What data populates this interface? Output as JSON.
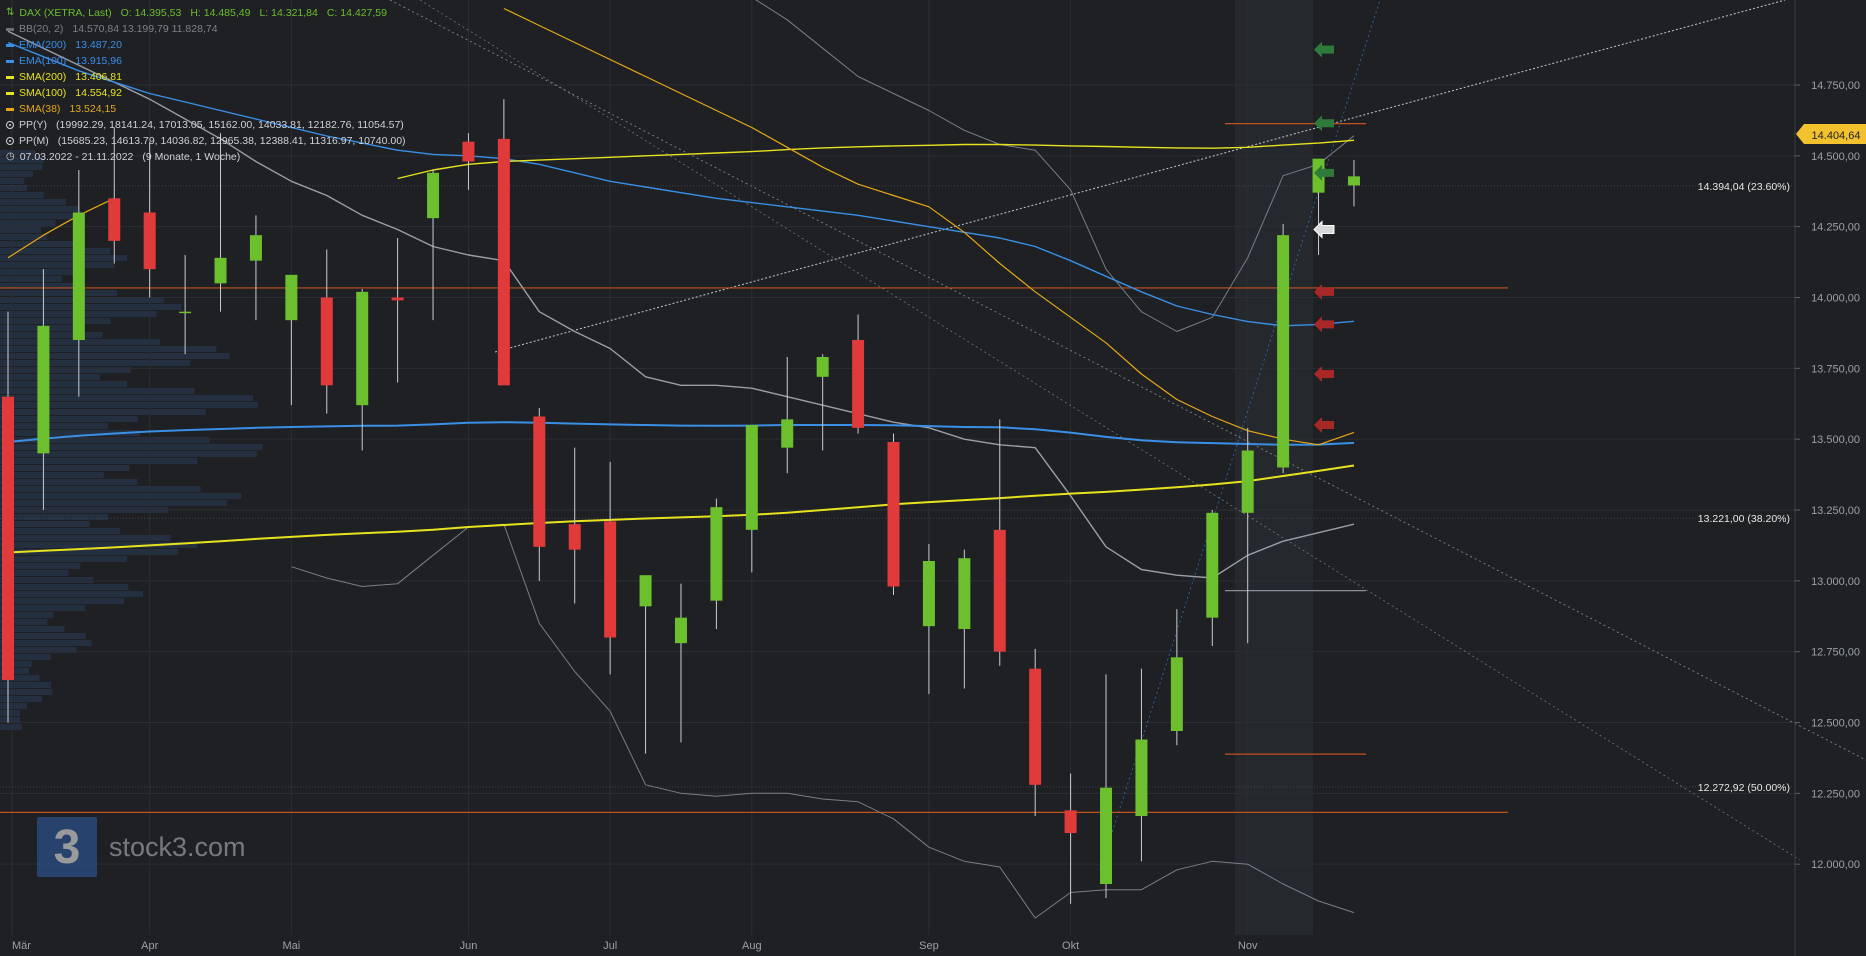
{
  "chart_data": {
    "type": "candlestick",
    "title": "DAX (XETRA, Last)",
    "ohlc_header": {
      "o": "O: 14.395,53",
      "h": "H: 14.485,49",
      "l": "L: 14.321,84",
      "c": "C: 14.427,59"
    },
    "ylim": [
      11750,
      15050
    ],
    "y_ticks": [
      "12.000,00",
      "12.250,00",
      "12.500,00",
      "12.750,00",
      "13.000,00",
      "13.250,00",
      "13.500,00",
      "13.750,00",
      "14.000,00",
      "14.250,00",
      "14.500,00",
      "14.750,00"
    ],
    "x_ticks": [
      "Mär",
      "Apr",
      "Mai",
      "Jun",
      "Jul",
      "Aug",
      "Sep",
      "Okt",
      "Nov"
    ],
    "x_tick_weeks": [
      0,
      4,
      8,
      13,
      17,
      21,
      26,
      30,
      35
    ],
    "period": "07.03.2022 - 21.11.2022",
    "period_note": "(9 Monate, 1 Woche)",
    "last_price": "14.404,64",
    "last_price_value": 14404.64,
    "candles": [
      {
        "o": 13650,
        "h": 13950,
        "l": 12500,
        "c": 12650
      },
      {
        "o": 13450,
        "h": 14100,
        "l": 13250,
        "c": 13900
      },
      {
        "o": 13850,
        "h": 14450,
        "l": 13650,
        "c": 14300
      },
      {
        "o": 14350,
        "h": 14600,
        "l": 14120,
        "c": 14200
      },
      {
        "o": 14300,
        "h": 14550,
        "l": 14000,
        "c": 14100
      },
      {
        "o": 13950,
        "h": 14150,
        "l": 13800,
        "c": 13950
      },
      {
        "o": 14050,
        "h": 14580,
        "l": 13950,
        "c": 14140
      },
      {
        "o": 14130,
        "h": 14290,
        "l": 13920,
        "c": 14220
      },
      {
        "o": 13920,
        "h": 14080,
        "l": 13620,
        "c": 14080
      },
      {
        "o": 14000,
        "h": 14170,
        "l": 13590,
        "c": 13690
      },
      {
        "o": 13620,
        "h": 14030,
        "l": 13460,
        "c": 14020
      },
      {
        "o": 14000,
        "h": 14210,
        "l": 13700,
        "c": 13990
      },
      {
        "o": 14280,
        "h": 14450,
        "l": 13920,
        "c": 14440
      },
      {
        "o": 14550,
        "h": 14580,
        "l": 14380,
        "c": 14480
      },
      {
        "o": 14560,
        "h": 14700,
        "l": 13720,
        "c": 13690
      },
      {
        "o": 13580,
        "h": 13610,
        "l": 13000,
        "c": 13120
      },
      {
        "o": 13200,
        "h": 13470,
        "l": 12920,
        "c": 13110
      },
      {
        "o": 13210,
        "h": 13420,
        "l": 12670,
        "c": 12800
      },
      {
        "o": 12910,
        "h": 13010,
        "l": 12390,
        "c": 13020
      },
      {
        "o": 12780,
        "h": 12990,
        "l": 12430,
        "c": 12870
      },
      {
        "o": 12930,
        "h": 13290,
        "l": 12830,
        "c": 13260
      },
      {
        "o": 13180,
        "h": 13520,
        "l": 13030,
        "c": 13550
      },
      {
        "o": 13470,
        "h": 13790,
        "l": 13380,
        "c": 13570
      },
      {
        "o": 13720,
        "h": 13800,
        "l": 13460,
        "c": 13790
      },
      {
        "o": 13850,
        "h": 13940,
        "l": 13520,
        "c": 13540
      },
      {
        "o": 13490,
        "h": 13520,
        "l": 12950,
        "c": 12980
      },
      {
        "o": 12840,
        "h": 13130,
        "l": 12600,
        "c": 13070
      },
      {
        "o": 12830,
        "h": 13110,
        "l": 12620,
        "c": 13080
      },
      {
        "o": 13180,
        "h": 13570,
        "l": 12700,
        "c": 12750
      },
      {
        "o": 12690,
        "h": 12760,
        "l": 12170,
        "c": 12280
      },
      {
        "o": 12190,
        "h": 12320,
        "l": 11860,
        "c": 12110
      },
      {
        "o": 11930,
        "h": 12670,
        "l": 11880,
        "c": 12270
      },
      {
        "o": 12170,
        "h": 12690,
        "l": 12010,
        "c": 12440
      },
      {
        "o": 12470,
        "h": 12900,
        "l": 12420,
        "c": 12730
      },
      {
        "o": 12870,
        "h": 13250,
        "l": 12770,
        "c": 13240
      },
      {
        "o": 13240,
        "h": 13540,
        "l": 12780,
        "c": 13460
      },
      {
        "o": 13400,
        "h": 14260,
        "l": 13380,
        "c": 14220
      },
      {
        "o": 14370,
        "h": 14480,
        "l": 14150,
        "c": 14490
      },
      {
        "o": 14395.53,
        "h": 14485.49,
        "l": 14321.84,
        "c": 14427.59
      }
    ],
    "series": [
      {
        "name": "EMA(200)",
        "label": "EMA(200)",
        "value_text": "13.487,20",
        "color": "#3a8fe6",
        "values": [
          13490,
          13502,
          13512,
          13520,
          13527,
          13532,
          13536,
          13540,
          13543,
          13545,
          13547,
          13548,
          13552,
          13558,
          13560,
          13558,
          13555,
          13552,
          13550,
          13548,
          13547,
          13548,
          13550,
          13550,
          13550,
          13549,
          13546,
          13543,
          13542,
          13535,
          13523,
          13508,
          13496,
          13489,
          13486,
          13483,
          13480,
          13481,
          13487
        ]
      },
      {
        "name": "EMA(100)",
        "label": "EMA(100)",
        "value_text": "13.915,96",
        "color": "#3a8fe6",
        "values": [
          14900,
          14850,
          14800,
          14760,
          14720,
          14690,
          14660,
          14630,
          14600,
          14570,
          14545,
          14520,
          14505,
          14500,
          14490,
          14470,
          14440,
          14410,
          14390,
          14370,
          14350,
          14335,
          14320,
          14305,
          14290,
          14270,
          14250,
          14230,
          14210,
          14180,
          14130,
          14075,
          14020,
          13970,
          13940,
          13915,
          13900,
          13905,
          13916
        ]
      },
      {
        "name": "SMA(200)",
        "label": "SMA(200)",
        "value_text": "13.406,81",
        "color": "#e8e31e",
        "values": [
          13100,
          13106,
          13112,
          13118,
          13125,
          13132,
          13140,
          13148,
          13155,
          13162,
          13168,
          13173,
          13180,
          13190,
          13197,
          13204,
          13210,
          13215,
          13220,
          13224,
          13228,
          13233,
          13240,
          13250,
          13260,
          13270,
          13278,
          13285,
          13292,
          13300,
          13308,
          13314,
          13322,
          13330,
          13340,
          13352,
          13370,
          13388,
          13407
        ]
      },
      {
        "name": "SMA(100)",
        "label": "SMA(100)",
        "value_text": "14.554,92",
        "color": "#e8e31e",
        "values": [
          null,
          null,
          null,
          null,
          null,
          null,
          null,
          null,
          null,
          null,
          null,
          14420,
          14450,
          14470,
          14480,
          14485,
          14490,
          14495,
          14500,
          14505,
          14510,
          14515,
          14522,
          14528,
          14532,
          14535,
          14537,
          14540,
          14540,
          14538,
          14535,
          14533,
          14530,
          14528,
          14527,
          14530,
          14538,
          14545,
          14555
        ]
      },
      {
        "name": "SMA(38)",
        "label": "SMA(38)",
        "value_text": "13.524,15",
        "color": "#e6a817",
        "values": [
          14140,
          14220,
          14290,
          14350,
          null,
          null,
          null,
          null,
          null,
          null,
          null,
          null,
          null,
          null,
          15020,
          14960,
          14900,
          14840,
          14780,
          14720,
          14660,
          14600,
          14530,
          14460,
          14400,
          14360,
          14320,
          14230,
          14120,
          14020,
          13930,
          13840,
          13730,
          13640,
          13580,
          13530,
          13500,
          13480,
          13524
        ]
      },
      {
        "name": "BB(20, 2)",
        "label": "BB(20, 2)",
        "value_text": "14.570,84  13.199,79  11.828,74",
        "color": "#6c7078",
        "upper": [
          null,
          null,
          null,
          null,
          null,
          null,
          null,
          null,
          null,
          null,
          null,
          null,
          null,
          null,
          null,
          null,
          null,
          null,
          null,
          15100,
          15100,
          15060,
          14980,
          14880,
          14780,
          14720,
          14660,
          14590,
          14540,
          14520,
          14380,
          14100,
          13950,
          13880,
          13930,
          14140,
          14430,
          14470,
          14571
        ],
        "middle": [
          14940,
          14880,
          14820,
          14760,
          14700,
          14630,
          14560,
          14480,
          14410,
          14360,
          14290,
          14240,
          14180,
          14150,
          14130,
          13950,
          13880,
          13820,
          13720,
          13690,
          13690,
          13680,
          13650,
          13620,
          13590,
          13560,
          13540,
          13500,
          13480,
          13470,
          13300,
          13120,
          13040,
          13020,
          13010,
          13090,
          13140,
          13170,
          13200
        ],
        "lower": [
          null,
          null,
          null,
          null,
          null,
          null,
          null,
          null,
          13050,
          13010,
          12980,
          12990,
          13090,
          13190,
          13200,
          12850,
          12680,
          12540,
          12280,
          12250,
          12240,
          12250,
          12250,
          12230,
          12220,
          12160,
          12060,
          12010,
          11990,
          11810,
          11900,
          11910,
          11910,
          11980,
          12010,
          12000,
          11930,
          11870,
          11829
        ]
      }
    ],
    "pivots": [
      {
        "label": "PP(Y)",
        "values": "(19992.29, 18141.24, 17013.05, 15162.00, 14033.81, 12182.76, 11054.57)"
      },
      {
        "label": "PP(M)",
        "values": "(15685.23, 14613.79, 14036.82, 12965.38, 12388.41, 11316.97, 10740.00)"
      }
    ],
    "horizontal_levels": [
      {
        "value": 14033.81,
        "color": "#c0521c"
      },
      {
        "value": 12182.76,
        "color": "#c0521c"
      }
    ],
    "pp_month_levels": [
      {
        "value": 14613.79,
        "color": "#c0521c"
      },
      {
        "value": 12965.38,
        "color": "#8a8d93"
      },
      {
        "value": 12388.41,
        "color": "#c0521c"
      }
    ],
    "fibonacci": [
      {
        "value": 14394.04,
        "label": "14.394,04 (23.60%)"
      },
      {
        "value": 13221.0,
        "label": "13.221,00 (38.20%)"
      },
      {
        "value": 12272.92,
        "label": "12.272,92 (50.00%)"
      }
    ],
    "signal_arrows": [
      {
        "value": 14875,
        "color": "#2f7a3a",
        "dir": "up"
      },
      {
        "value": 14615,
        "color": "#2f7a3a",
        "dir": "up"
      },
      {
        "value": 14440,
        "color": "#2f7a3a",
        "dir": "up"
      },
      {
        "value": 14240,
        "color": "#d8d8d8",
        "dir": "flat"
      },
      {
        "value": 14020,
        "color": "#a82828",
        "dir": "down"
      },
      {
        "value": 13905,
        "color": "#a82828",
        "dir": "down"
      },
      {
        "value": 13730,
        "color": "#a82828",
        "dir": "down"
      },
      {
        "value": 13550,
        "color": "#a82828",
        "dir": "down"
      }
    ],
    "up_color": "#6cbf2d",
    "down_color": "#e03a3a",
    "background": "#1e2024"
  },
  "watermark": {
    "logo_char": "3",
    "text": "stock3.com"
  }
}
